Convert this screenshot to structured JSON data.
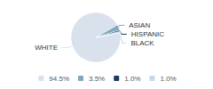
{
  "chart_data": {
    "type": "pie",
    "categories": [
      "WHITE",
      "ASIAN",
      "HISPANIC",
      "BLACK"
    ],
    "values": [
      94.5,
      3.5,
      1.0,
      1.0
    ],
    "value_labels": [
      "94.5%",
      "3.5%",
      "1.0%",
      "1.0%"
    ],
    "colors": [
      "#d9e2ec",
      "#7fa8be",
      "#1f3a5f",
      "#c8d8e8"
    ],
    "legend": "bottom"
  }
}
